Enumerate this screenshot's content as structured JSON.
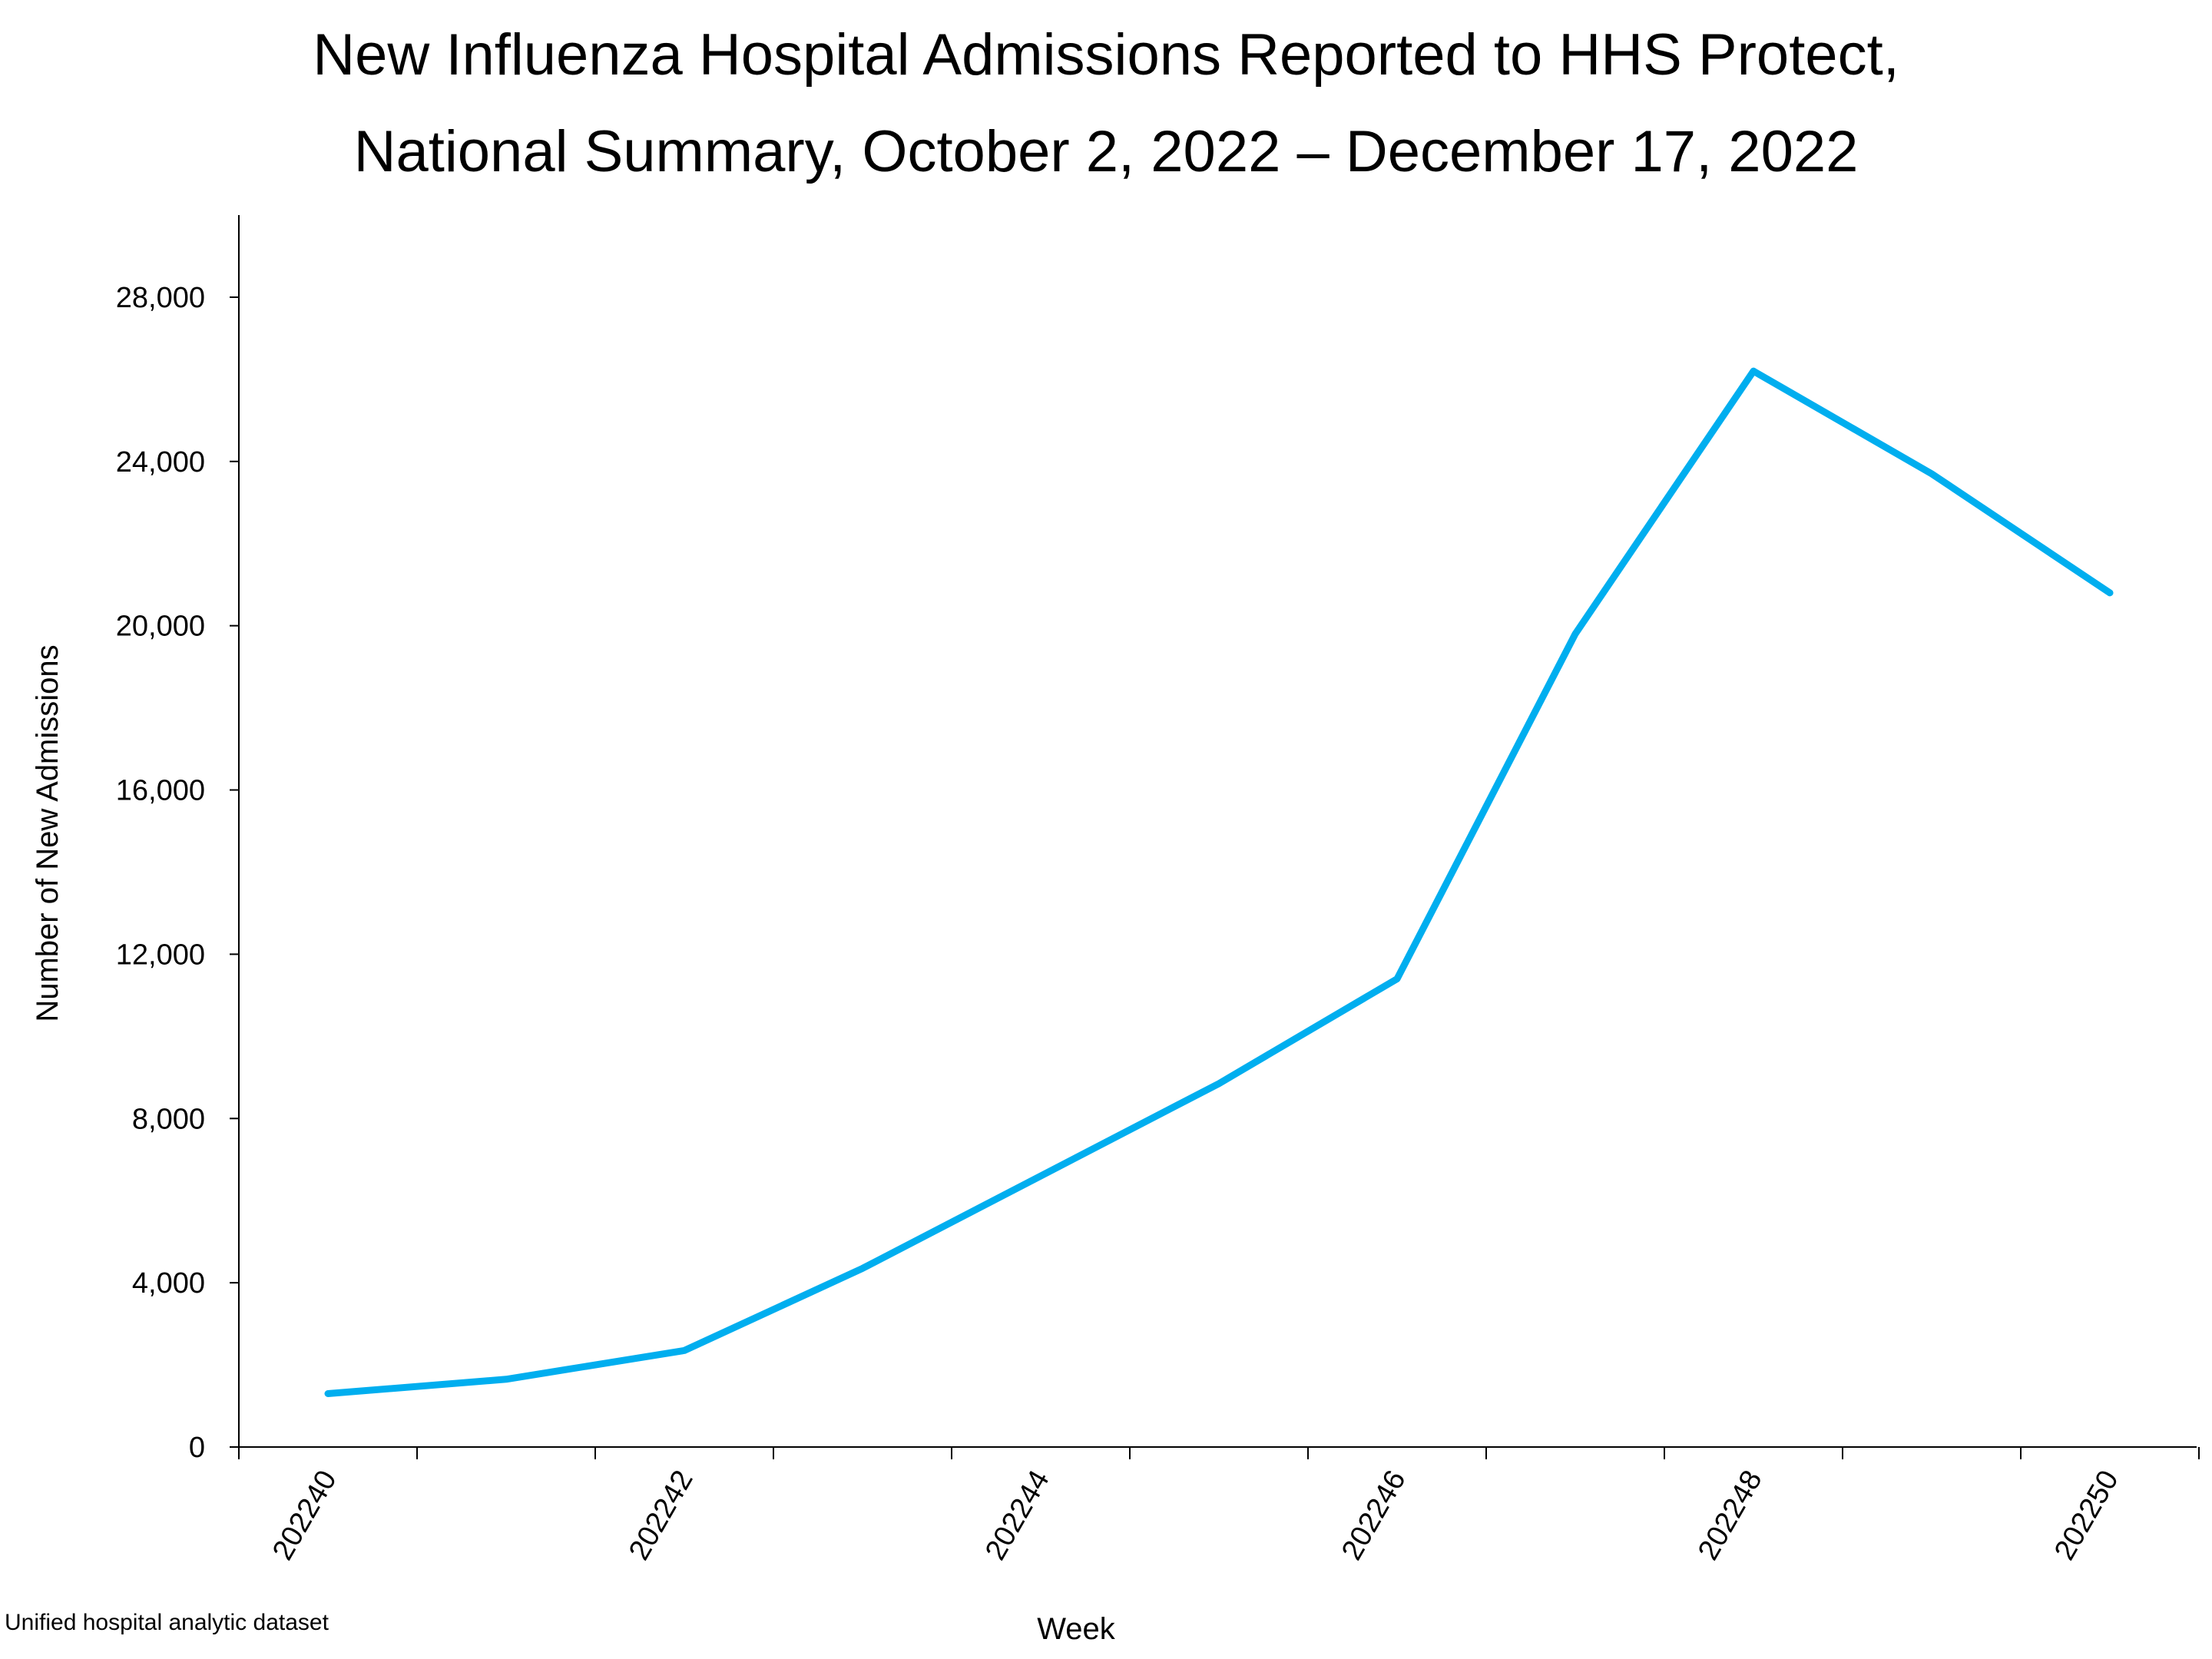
{
  "chart_data": {
    "type": "line",
    "title": "New Influenza Hospital Admissions Reported to HHS Protect,",
    "subtitle": "National Summary, October 2, 2022 – December 17, 2022",
    "xlabel": "Week",
    "ylabel": "Number of New Admissions",
    "x": [
      "202240",
      "202241",
      "202242",
      "202243",
      "202244",
      "202245",
      "202246",
      "202247",
      "202248",
      "202249",
      "202250"
    ],
    "x_tick_labels": [
      "202240",
      "202242",
      "202244",
      "202246",
      "202248",
      "202250"
    ],
    "series": [
      {
        "values": [
          1300,
          1650,
          2350,
          4350,
          6600,
          8850,
          11400,
          19800,
          26200,
          23700,
          20800
        ]
      }
    ],
    "ylim": [
      0,
      30000
    ],
    "y_ticks": [
      0,
      4000,
      8000,
      12000,
      16000,
      20000,
      24000,
      28000
    ],
    "y_tick_labels": [
      "0",
      "4,000",
      "8,000",
      "12,000",
      "16,000",
      "20,000",
      "24,000",
      "28,000"
    ],
    "grid": false,
    "legend": "none",
    "line_color": "#00AEEF"
  },
  "footer": {
    "source": "Unified hospital analytic dataset"
  }
}
